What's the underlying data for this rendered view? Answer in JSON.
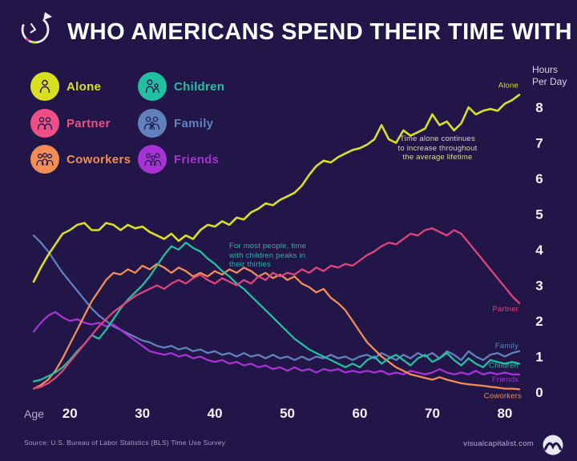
{
  "header": {
    "title": "WHO AMERICANS SPEND THEIR TIME WITH"
  },
  "legend": {
    "items": [
      {
        "label": "Alone",
        "color": "#d9e021"
      },
      {
        "label": "Partner",
        "color": "#ee4f87"
      },
      {
        "label": "Coworkers",
        "color": "#f28d55"
      },
      {
        "label": "Children",
        "color": "#22bfa0"
      },
      {
        "label": "Family",
        "color": "#6181bd"
      },
      {
        "label": "Friends",
        "color": "#a832d6"
      }
    ]
  },
  "y_axis": {
    "title_line1": "Hours",
    "title_line2": "Per Day",
    "ticks": [
      8,
      7,
      6,
      5,
      4,
      3,
      2,
      1,
      0
    ]
  },
  "x_axis": {
    "label": "Age",
    "ticks": [
      20,
      30,
      40,
      50,
      60,
      70,
      80
    ]
  },
  "annotations": [
    {
      "text": "Time alone continues to increase throughout the average lifetime",
      "color": "#dcd9a0"
    },
    {
      "text": "For most people, time with children peaks in their thirties",
      "color": "#2eb2a6"
    }
  ],
  "footer": {
    "source": "Source: U.S. Bureau of Labor Statistics (BLS) Time Use Survey",
    "site": "visualcapitalist.com"
  },
  "chart_data": {
    "type": "line",
    "title": "Who Americans spend their time with, by age",
    "xlabel": "Age",
    "ylabel": "Hours Per Day",
    "xlim": [
      15,
      82
    ],
    "ylim": [
      0,
      8.5
    ],
    "grid": false,
    "legend_position": "top-left",
    "x": [
      15,
      16,
      17,
      18,
      19,
      20,
      21,
      22,
      23,
      24,
      25,
      26,
      27,
      28,
      29,
      30,
      31,
      32,
      33,
      34,
      35,
      36,
      37,
      38,
      39,
      40,
      41,
      42,
      43,
      44,
      45,
      46,
      47,
      48,
      49,
      50,
      51,
      52,
      53,
      54,
      55,
      56,
      57,
      58,
      59,
      60,
      61,
      62,
      63,
      64,
      65,
      66,
      67,
      68,
      69,
      70,
      71,
      72,
      73,
      74,
      75,
      76,
      77,
      78,
      79,
      80,
      81,
      82
    ],
    "series": [
      {
        "name": "Alone",
        "color": "#d9e021",
        "values": [
          3.1,
          3.5,
          3.85,
          4.15,
          4.45,
          4.55,
          4.7,
          4.75,
          4.55,
          4.55,
          4.75,
          4.7,
          4.55,
          4.7,
          4.6,
          4.65,
          4.5,
          4.4,
          4.3,
          4.45,
          4.25,
          4.4,
          4.3,
          4.55,
          4.7,
          4.65,
          4.8,
          4.7,
          4.9,
          4.85,
          5.05,
          5.15,
          5.3,
          5.25,
          5.4,
          5.5,
          5.6,
          5.8,
          6.1,
          6.35,
          6.5,
          6.45,
          6.6,
          6.7,
          6.8,
          6.85,
          6.95,
          7.1,
          7.5,
          7.1,
          7.0,
          7.35,
          7.2,
          7.3,
          7.4,
          7.8,
          7.5,
          7.6,
          7.35,
          7.55,
          8.0,
          7.8,
          7.9,
          7.95,
          7.9,
          8.1,
          8.2,
          8.35
        ]
      },
      {
        "name": "Partner",
        "color": "#e0447e",
        "values": [
          0.1,
          0.15,
          0.25,
          0.4,
          0.6,
          0.85,
          1.1,
          1.35,
          1.6,
          1.85,
          2.05,
          2.25,
          2.4,
          2.55,
          2.7,
          2.8,
          2.9,
          3.0,
          2.9,
          3.05,
          3.15,
          3.05,
          3.2,
          3.3,
          3.15,
          3.05,
          3.2,
          3.1,
          3.0,
          3.15,
          3.05,
          3.25,
          3.15,
          3.35,
          3.25,
          3.35,
          3.3,
          3.45,
          3.35,
          3.5,
          3.4,
          3.55,
          3.5,
          3.6,
          3.55,
          3.7,
          3.85,
          3.95,
          4.1,
          4.2,
          4.15,
          4.3,
          4.45,
          4.4,
          4.55,
          4.6,
          4.5,
          4.4,
          4.55,
          4.45,
          4.2,
          3.95,
          3.7,
          3.45,
          3.2,
          2.95,
          2.7,
          2.5
        ]
      },
      {
        "name": "Children",
        "color": "#22bfa0",
        "values": [
          0.3,
          0.35,
          0.45,
          0.55,
          0.7,
          0.9,
          1.15,
          1.35,
          1.6,
          1.5,
          1.75,
          2.05,
          2.35,
          2.6,
          2.8,
          3.0,
          3.25,
          3.55,
          3.85,
          4.1,
          4.0,
          4.2,
          4.05,
          3.95,
          3.75,
          3.6,
          3.4,
          3.25,
          3.05,
          2.9,
          2.7,
          2.5,
          2.3,
          2.1,
          1.9,
          1.7,
          1.5,
          1.35,
          1.2,
          1.1,
          1.0,
          0.9,
          0.8,
          0.7,
          0.8,
          0.7,
          0.9,
          1.0,
          0.8,
          0.95,
          1.05,
          0.9,
          0.75,
          0.95,
          1.05,
          0.85,
          0.95,
          1.1,
          0.9,
          0.75,
          0.95,
          0.8,
          0.7,
          0.9,
          0.85,
          0.8,
          0.85,
          0.8
        ]
      },
      {
        "name": "Family",
        "color": "#6181bd",
        "values": [
          4.4,
          4.2,
          3.95,
          3.65,
          3.35,
          3.1,
          2.85,
          2.6,
          2.35,
          2.15,
          2.0,
          1.85,
          1.75,
          1.65,
          1.55,
          1.45,
          1.4,
          1.3,
          1.25,
          1.3,
          1.2,
          1.25,
          1.15,
          1.2,
          1.1,
          1.15,
          1.05,
          1.1,
          1.0,
          1.1,
          1.0,
          1.05,
          0.95,
          1.05,
          0.95,
          1.0,
          0.9,
          1.0,
          0.9,
          1.0,
          0.95,
          1.05,
          0.95,
          1.0,
          0.9,
          1.0,
          1.05,
          0.95,
          1.1,
          1.0,
          0.9,
          1.05,
          0.95,
          1.1,
          1.0,
          1.1,
          0.95,
          1.15,
          1.05,
          0.9,
          1.15,
          1.0,
          0.9,
          1.05,
          1.1,
          1.0,
          1.1,
          1.15
        ]
      },
      {
        "name": "Coworkers",
        "color": "#f28d55",
        "values": [
          0.1,
          0.2,
          0.35,
          0.6,
          0.95,
          1.35,
          1.75,
          2.15,
          2.55,
          2.85,
          3.15,
          3.35,
          3.3,
          3.45,
          3.35,
          3.55,
          3.45,
          3.6,
          3.5,
          3.35,
          3.5,
          3.4,
          3.25,
          3.35,
          3.25,
          3.4,
          3.3,
          3.45,
          3.35,
          3.5,
          3.4,
          3.25,
          3.35,
          3.2,
          3.3,
          3.15,
          3.25,
          3.05,
          2.95,
          2.8,
          2.9,
          2.65,
          2.5,
          2.3,
          2.0,
          1.7,
          1.4,
          1.2,
          1.0,
          0.85,
          0.7,
          0.6,
          0.5,
          0.45,
          0.4,
          0.35,
          0.42,
          0.35,
          0.3,
          0.25,
          0.22,
          0.2,
          0.18,
          0.15,
          0.13,
          0.1,
          0.1,
          0.08
        ]
      },
      {
        "name": "Friends",
        "color": "#a832d6",
        "values": [
          1.7,
          1.95,
          2.15,
          2.25,
          2.1,
          2.0,
          2.05,
          1.95,
          1.9,
          1.95,
          1.85,
          1.9,
          1.75,
          1.6,
          1.45,
          1.3,
          1.15,
          1.1,
          1.05,
          1.1,
          1.0,
          1.05,
          0.95,
          1.0,
          0.9,
          0.85,
          0.9,
          0.8,
          0.85,
          0.75,
          0.8,
          0.7,
          0.75,
          0.65,
          0.7,
          0.6,
          0.7,
          0.6,
          0.65,
          0.55,
          0.65,
          0.6,
          0.65,
          0.55,
          0.6,
          0.55,
          0.6,
          0.55,
          0.6,
          0.5,
          0.55,
          0.5,
          0.6,
          0.55,
          0.5,
          0.55,
          0.65,
          0.55,
          0.5,
          0.55,
          0.5,
          0.6,
          0.5,
          0.55,
          0.5,
          0.55,
          0.5,
          0.5
        ]
      }
    ]
  }
}
